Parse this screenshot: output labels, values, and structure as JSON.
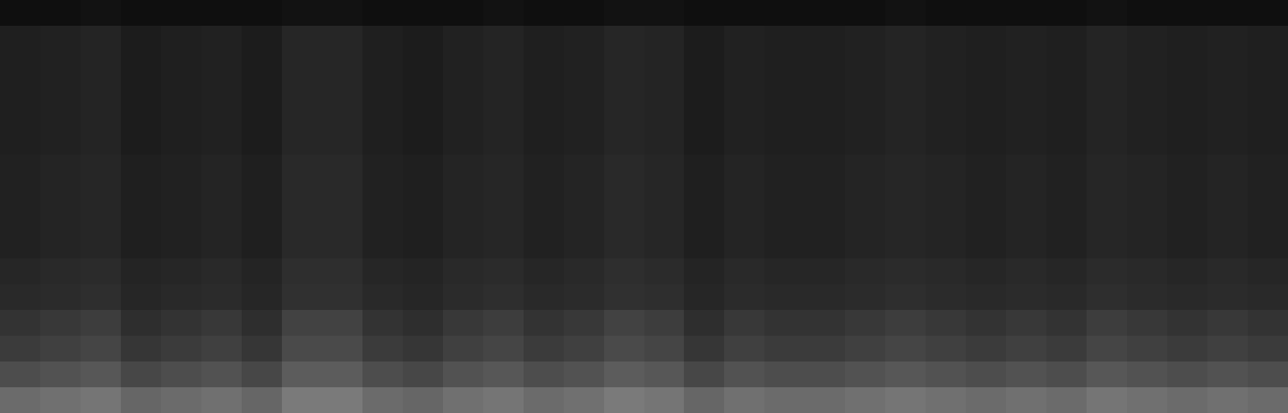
{
  "chart_data": {
    "type": "heatmap",
    "tick_labels": false,
    "zlim": [
      0,
      100
    ],
    "cells": [
      [
        6,
        6,
        7,
        6,
        6,
        6,
        6,
        7,
        7,
        6,
        6,
        6,
        7,
        6,
        6,
        7,
        7,
        6,
        6,
        6,
        6,
        6,
        7,
        6,
        6,
        6,
        6,
        7,
        6,
        6,
        6,
        6
      ],
      [
        12,
        13,
        14,
        11,
        12,
        13,
        11,
        15,
        15,
        12,
        11,
        13,
        14,
        12,
        13,
        15,
        14,
        11,
        13,
        12,
        12,
        13,
        14,
        13,
        12,
        13,
        12,
        14,
        13,
        12,
        13,
        12
      ],
      [
        12,
        13,
        14,
        11,
        12,
        13,
        11,
        15,
        15,
        12,
        11,
        13,
        14,
        12,
        13,
        15,
        14,
        11,
        13,
        12,
        12,
        13,
        14,
        13,
        12,
        13,
        12,
        14,
        13,
        12,
        13,
        12
      ],
      [
        12,
        13,
        14,
        11,
        12,
        13,
        11,
        15,
        15,
        12,
        11,
        13,
        14,
        12,
        13,
        15,
        14,
        11,
        13,
        12,
        12,
        13,
        14,
        13,
        12,
        13,
        12,
        14,
        13,
        12,
        13,
        12
      ],
      [
        12,
        13,
        14,
        11,
        12,
        13,
        11,
        15,
        15,
        12,
        11,
        13,
        14,
        12,
        13,
        15,
        14,
        11,
        13,
        12,
        12,
        13,
        14,
        13,
        12,
        13,
        12,
        14,
        13,
        12,
        13,
        12
      ],
      [
        12,
        13,
        14,
        11,
        12,
        13,
        11,
        15,
        15,
        12,
        11,
        13,
        14,
        12,
        13,
        15,
        14,
        11,
        13,
        12,
        12,
        13,
        14,
        13,
        12,
        13,
        12,
        14,
        13,
        12,
        13,
        12
      ],
      [
        13,
        14,
        15,
        12,
        13,
        14,
        12,
        16,
        16,
        13,
        12,
        14,
        15,
        13,
        14,
        16,
        15,
        12,
        14,
        13,
        13,
        14,
        15,
        14,
        13,
        14,
        13,
        15,
        14,
        13,
        14,
        13
      ],
      [
        13,
        14,
        15,
        12,
        13,
        14,
        12,
        16,
        16,
        13,
        12,
        14,
        15,
        13,
        14,
        16,
        15,
        12,
        14,
        13,
        13,
        14,
        15,
        14,
        13,
        14,
        13,
        15,
        14,
        13,
        14,
        13
      ],
      [
        13,
        14,
        15,
        12,
        13,
        14,
        12,
        16,
        16,
        13,
        12,
        14,
        15,
        13,
        14,
        16,
        15,
        12,
        14,
        13,
        13,
        14,
        15,
        14,
        13,
        14,
        13,
        15,
        14,
        13,
        14,
        13
      ],
      [
        13,
        14,
        15,
        12,
        13,
        14,
        12,
        16,
        16,
        13,
        12,
        14,
        15,
        13,
        14,
        16,
        15,
        12,
        14,
        13,
        13,
        14,
        15,
        14,
        13,
        14,
        13,
        15,
        14,
        13,
        14,
        13
      ],
      [
        15,
        16,
        17,
        14,
        15,
        16,
        14,
        18,
        18,
        15,
        14,
        16,
        17,
        15,
        16,
        18,
        17,
        14,
        16,
        15,
        15,
        16,
        17,
        16,
        15,
        16,
        15,
        17,
        16,
        15,
        16,
        15
      ],
      [
        16,
        17,
        18,
        15,
        16,
        17,
        15,
        19,
        19,
        16,
        15,
        17,
        18,
        16,
        17,
        19,
        18,
        15,
        17,
        16,
        16,
        17,
        18,
        17,
        16,
        17,
        16,
        18,
        17,
        16,
        17,
        16
      ],
      [
        20,
        22,
        24,
        18,
        20,
        22,
        18,
        26,
        26,
        20,
        18,
        22,
        24,
        20,
        22,
        26,
        24,
        18,
        22,
        20,
        20,
        22,
        24,
        22,
        20,
        22,
        20,
        24,
        22,
        20,
        22,
        20
      ],
      [
        23,
        25,
        27,
        21,
        23,
        25,
        21,
        29,
        29,
        23,
        21,
        25,
        27,
        23,
        25,
        29,
        27,
        21,
        25,
        23,
        23,
        25,
        27,
        25,
        23,
        25,
        23,
        27,
        25,
        23,
        25,
        23
      ],
      [
        30,
        32,
        34,
        28,
        30,
        32,
        28,
        36,
        36,
        30,
        28,
        32,
        34,
        30,
        32,
        36,
        34,
        28,
        32,
        30,
        30,
        32,
        34,
        32,
        30,
        32,
        30,
        34,
        32,
        30,
        32,
        30
      ],
      [
        42,
        44,
        46,
        40,
        42,
        44,
        40,
        48,
        48,
        42,
        40,
        44,
        46,
        42,
        44,
        48,
        46,
        40,
        44,
        42,
        42,
        44,
        46,
        44,
        42,
        44,
        42,
        46,
        44,
        42,
        44,
        42
      ]
    ]
  }
}
